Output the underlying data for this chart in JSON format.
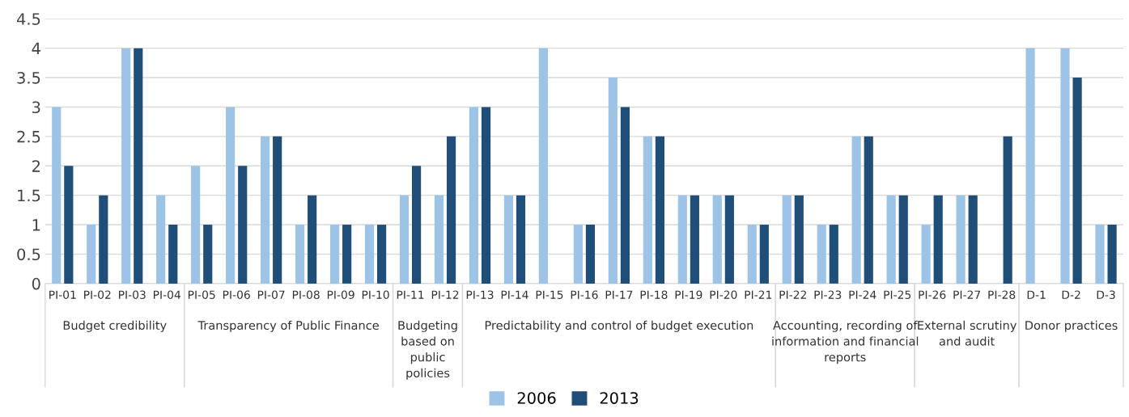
{
  "chart_data": {
    "type": "bar",
    "categories": [
      "PI-01",
      "PI-02",
      "PI-03",
      "PI-04",
      "PI-05",
      "PI-06",
      "PI-07",
      "PI-08",
      "PI-09",
      "PI-10",
      "PI-11",
      "PI-12",
      "PI-13",
      "PI-14",
      "PI-15",
      "PI-16",
      "PI-17",
      "PI-18",
      "PI-19",
      "PI-20",
      "PI-21",
      "PI-22",
      "PI-23",
      "PI-24",
      "PI-25",
      "PI-26",
      "PI-27",
      "PI-28",
      "D-1",
      "D-2",
      "D-3"
    ],
    "series": [
      {
        "name": "2006",
        "color": "#9dc3e6",
        "values": [
          3,
          1,
          4,
          1.5,
          2,
          3,
          2.5,
          1,
          1,
          1,
          1.5,
          1.5,
          3,
          1.5,
          4,
          1,
          3.5,
          2.5,
          1.5,
          1.5,
          1,
          1.5,
          1,
          2.5,
          1.5,
          1,
          1.5,
          null,
          4,
          4,
          1
        ]
      },
      {
        "name": "2013",
        "color": "#1f4e79",
        "values": [
          2,
          1.5,
          4,
          1,
          1,
          2,
          2.5,
          1.5,
          1,
          1,
          2,
          2.5,
          3,
          1.5,
          null,
          1,
          3,
          2.5,
          1.5,
          1.5,
          1,
          1.5,
          1,
          2.5,
          1.5,
          1.5,
          1.5,
          2.5,
          null,
          3.5,
          1
        ]
      }
    ],
    "ylim": [
      0,
      4.5
    ],
    "yticks": [
      0,
      0.5,
      1,
      1.5,
      2,
      2.5,
      3,
      3.5,
      4,
      4.5
    ],
    "grid": "y",
    "legend": "bottom",
    "annotations": [
      "Budget credibility",
      "Transparency of Public Finance",
      "Budgeting\nbased on\npublic\npolicies",
      "Predictability and control of budget execution",
      "Accounting, recording of\ninformation and financial\nreports",
      "External scrutiny\nand audit",
      "Donor practices"
    ]
  }
}
